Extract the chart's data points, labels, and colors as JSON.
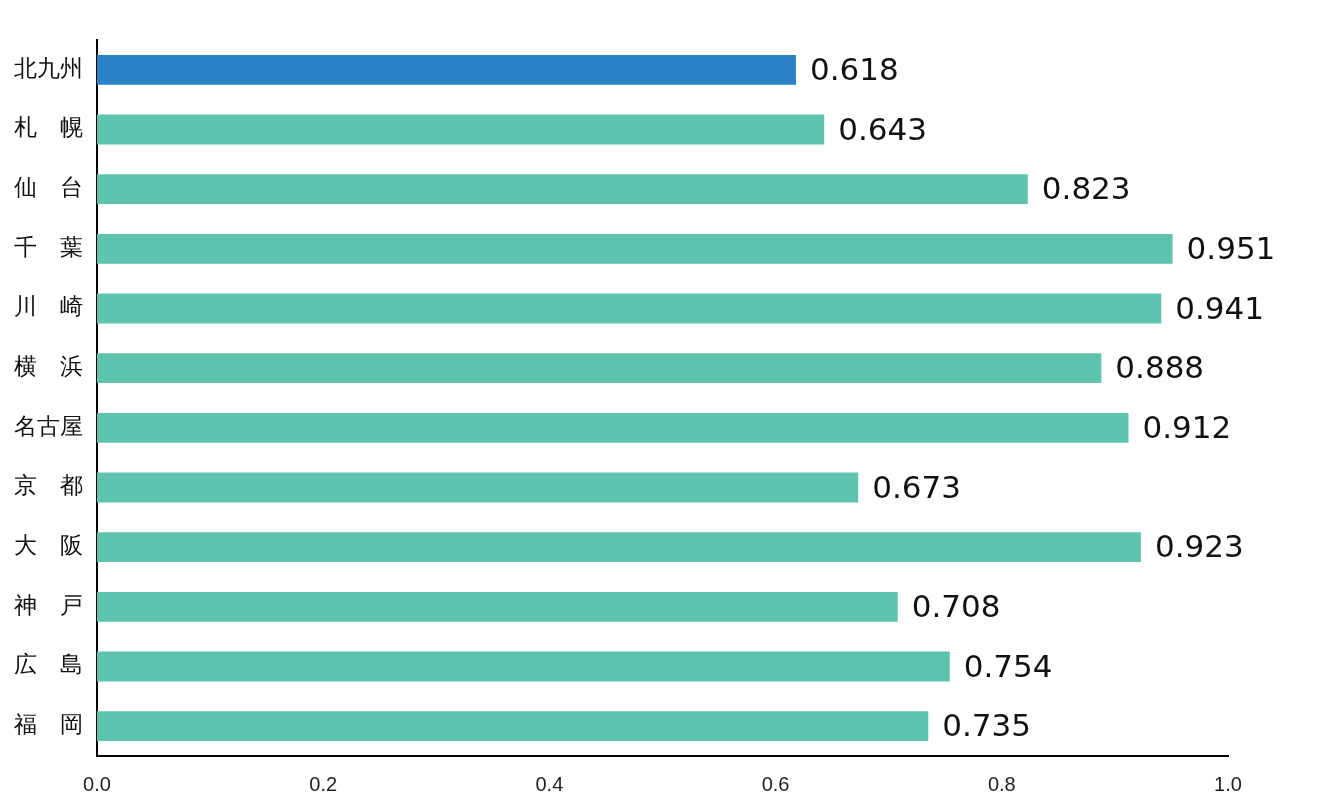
{
  "chart_data": {
    "type": "bar",
    "orientation": "horizontal",
    "categories": [
      "北九州",
      "札　幌",
      "仙　台",
      "千　葉",
      "川　崎",
      "横　浜",
      "名古屋",
      "京　都",
      "大　阪",
      "神　戸",
      "広　島",
      "福　岡"
    ],
    "values": [
      0.618,
      0.643,
      0.823,
      0.951,
      0.941,
      0.888,
      0.912,
      0.673,
      0.923,
      0.708,
      0.754,
      0.735
    ],
    "colors": [
      "#2a82c8",
      "#5ec4ad",
      "#5ec4ad",
      "#5ec4ad",
      "#5ec4ad",
      "#5ec4ad",
      "#5ec4ad",
      "#5ec4ad",
      "#5ec4ad",
      "#5ec4ad",
      "#5ec4ad",
      "#5ec4ad"
    ],
    "xlim": [
      0,
      1.0
    ],
    "xticks": [
      {
        "value": 0,
        "label": "0.0"
      },
      {
        "value": 0.2,
        "label": "0.2"
      },
      {
        "value": 0.4,
        "label": "0.4"
      },
      {
        "value": 0.6,
        "label": "0.6"
      },
      {
        "value": 0.8,
        "label": "0.8"
      },
      {
        "value": 1.0,
        "label": "1.0"
      }
    ],
    "data_labels": true,
    "grid": false,
    "legend": false
  }
}
